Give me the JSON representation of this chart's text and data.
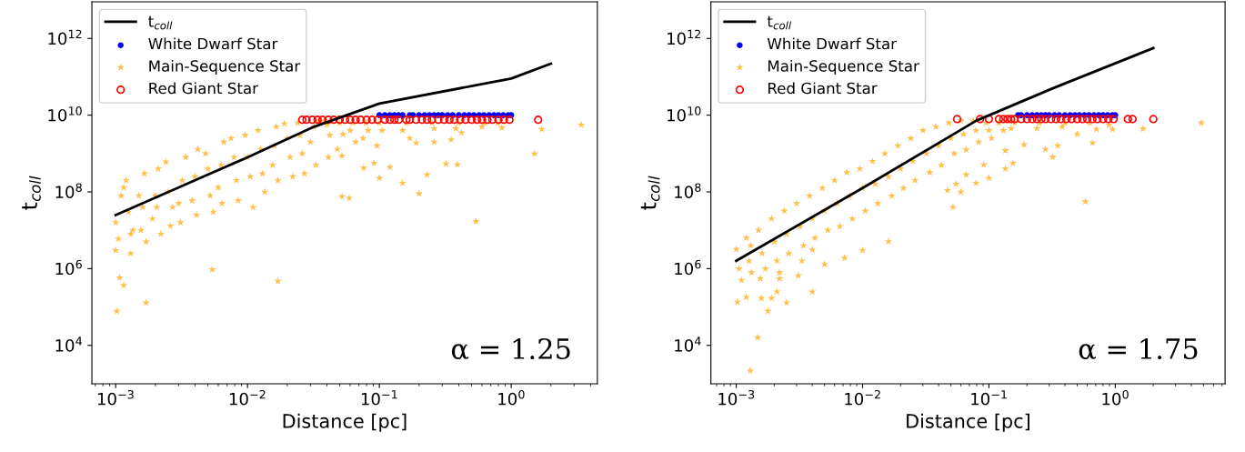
{
  "chart_data": [
    {
      "type": "scatter",
      "xlabel": "Distance [pc]",
      "ylabel": "t$_{coll}$",
      "log": "xy",
      "legend": "top left",
      "annotations": [
        "α = 1.25"
      ],
      "xlim": [
        0.00066,
        4.5
      ],
      "ylim": [
        1000,
        9000000000000.0
      ],
      "xticks": [
        {
          "value": 0.001,
          "label": "10$^{−3}$"
        },
        {
          "value": 0.01,
          "label": "10$^{−2}$"
        },
        {
          "value": 0.1,
          "label": "10$^{−1}$"
        },
        {
          "value": 1,
          "label": "10$^{0}$"
        }
      ],
      "yticks": [
        {
          "value": 10000,
          "label": "10$^{4}$"
        },
        {
          "value": 1000000,
          "label": "10$^{6}$"
        },
        {
          "value": 100000000,
          "label": "10$^{8}$"
        },
        {
          "value": 10000000000,
          "label": "10$^{10}$"
        },
        {
          "value": 1000000000000,
          "label": "10$^{12}$"
        }
      ],
      "series": [
        {
          "name": "t$_{coll}$",
          "type": "line",
          "color": "#000000",
          "marker": "none",
          "line_style": "solid",
          "x": [
            0.001,
            0.01,
            0.032,
            0.1,
            1,
            2
          ],
          "values": [
            25000000.0,
            800000000.0,
            5000000000.0,
            20000000000.0,
            90000000000.0,
            220000000000.0
          ]
        },
        {
          "name": "White Dwarf Star",
          "color": "#0000ff",
          "marker": "circle",
          "x": [
            0.1,
            0.11,
            0.12,
            0.13,
            0.14,
            0.15,
            0.17,
            0.18,
            0.2,
            0.22,
            0.24,
            0.26,
            0.28,
            0.3,
            0.33,
            0.36,
            0.4,
            0.44,
            0.48,
            0.52,
            0.57,
            0.62,
            0.68,
            0.74,
            0.8,
            0.87,
            0.95,
            1.0
          ],
          "values": [
            10000000000.0,
            10000000000.0,
            10000000000.0,
            10000000000.0,
            10000000000.0,
            10000000000.0,
            10000000000.0,
            10000000000.0,
            10000000000.0,
            10000000000.0,
            10000000000.0,
            10000000000.0,
            10000000000.0,
            10000000000.0,
            10000000000.0,
            10000000000.0,
            10000000000.0,
            10000000000.0,
            10000000000.0,
            10000000000.0,
            10000000000.0,
            10000000000.0,
            10000000000.0,
            10000000000.0,
            10000000000.0,
            10000000000.0,
            10000000000.0,
            10000000000.0
          ]
        },
        {
          "name": "Main-Sequence Star",
          "type": "scatter",
          "color": "#ffa500",
          "marker": "star",
          "x": [
            0.001,
            0.00105,
            0.0011,
            0.001,
            0.00115,
            0.00125,
            0.0013,
            0.0012,
            0.00135,
            0.0013,
            0.0016,
            0.00155,
            0.00165,
            0.0015,
            0.0017,
            0.002,
            0.0019,
            0.0021,
            0.00205,
            0.0022,
            0.0025,
            0.0026,
            0.0024,
            0.0027,
            0.0032,
            0.003,
            0.0034,
            0.0031,
            0.004,
            0.0038,
            0.0042,
            0.0041,
            0.005,
            0.0052,
            0.0048,
            0.0055,
            0.0063,
            0.006,
            0.0066,
            0.0064,
            0.0079,
            0.0082,
            0.0075,
            0.0085,
            0.01,
            0.0105,
            0.0096,
            0.011,
            0.0126,
            0.013,
            0.012,
            0.0135,
            0.016,
            0.0155,
            0.0165,
            0.017,
            0.02,
            0.021,
            0.019,
            0.022,
            0.025,
            0.026,
            0.024,
            0.027,
            0.032,
            0.03,
            0.034,
            0.033,
            0.04,
            0.042,
            0.038,
            0.041,
            0.05,
            0.053,
            0.048,
            0.063,
            0.06,
            0.066,
            0.079,
            0.082,
            0.075,
            0.1,
            0.105,
            0.096,
            0.16,
            0.15,
            0.17,
            0.25,
            0.26,
            0.4,
            0.38,
            0.63,
            0.6,
            0.79,
            0.00102,
            0.00107,
            0.00115,
            0.0017,
            0.0054,
            0.017,
            0.54,
            0.052,
            0.059,
            0.2,
            0.15,
            3.4,
            1.5,
            1.7,
            0.1,
            0.12,
            0.076,
            0.23,
            0.32,
            0.39,
            0.091,
            0.85,
            0.19,
            0.26,
            0.35,
            0.052,
            0.42
          ],
          "values": [
            16000000.0,
            6000000.0,
            80000000.0,
            3000000.0,
            130000000.0,
            30000000.0,
            8000000.0,
            200000000.0,
            10000000.0,
            2500000.0,
            40000000.0,
            10000000.0,
            300000000.0,
            80000000.0,
            5000000.0,
            80000000.0,
            20000000.0,
            400000000.0,
            40000000.0,
            8000000.0,
            100000000.0,
            13000000.0,
            600000000.0,
            40000000.0,
            200000000.0,
            50000000.0,
            800000000.0,
            16000000.0,
            250000000.0,
            60000000.0,
            1300000000.0,
            25000000.0,
            400000000.0,
            80000000.0,
            1000000000.0,
            30000000.0,
            500000000.0,
            130000000.0,
            2000000000.0,
            50000000.0,
            800000000.0,
            200000000.0,
            2500000000.0,
            60000000.0,
            800000000.0,
            250000000.0,
            3000000000.0,
            40000000.0,
            1300000000.0,
            300000000.0,
            4000000000.0,
            100000000.0,
            1600000000.0,
            500000000.0,
            5000000000.0,
            200000000.0,
            2500000000.0,
            800000000.0,
            6000000000.0,
            250000000.0,
            3000000000.0,
            1000000000.0,
            6300000000.0,
            300000000.0,
            5000000000.0,
            2000000000.0,
            7000000000.0,
            500000000.0,
            5600000000.0,
            3000000000.0,
            7000000000.0,
            800000000.0,
            6300000000.0,
            3200000000.0,
            1300000000.0,
            6300000000.0,
            4000000000.0,
            2000000000.0,
            6300000000.0,
            4000000000.0,
            2500000000.0,
            6300000000.0,
            4000000000.0,
            1600000000.0,
            6300000000.0,
            4000000000.0,
            2500000000.0,
            6300000000.0,
            4500000000.0,
            6300000000.0,
            4500000000.0,
            6300000000.0,
            5000000000.0,
            6300000000.0,
            78000.0,
            580000.0,
            370000.0,
            130000.0,
            950000.0,
            470000.0,
            17000000.0,
            76000000.0,
            69000000.0,
            90000000.0,
            170000000.0,
            5600000000.0,
            980000000.0,
            4300000000.0,
            230000000.0,
            440000000.0,
            420000000.0,
            280000000.0,
            540000000.0,
            510000000.0,
            560000000.0,
            4700000000.0,
            1900000000.0,
            2000000000.0,
            2300000000.0,
            870000000.0,
            3500000000.0
          ]
        },
        {
          "name": "Red Giant Star",
          "color": "#ff0000",
          "marker": "circle",
          "x": [
            0.026,
            0.028,
            0.031,
            0.034,
            0.037,
            0.041,
            0.045,
            0.05,
            0.055,
            0.06,
            0.066,
            0.072,
            0.08,
            0.088,
            0.097,
            0.11,
            0.12,
            0.13,
            0.14,
            0.16,
            0.17,
            0.19,
            0.21,
            0.23,
            0.25,
            0.28,
            0.31,
            0.34,
            0.37,
            0.41,
            0.45,
            0.5,
            0.55,
            0.6,
            0.66,
            0.72,
            0.8,
            0.88,
            0.97,
            1.6
          ],
          "values": [
            7600000000.0,
            7600000000.0,
            7600000000.0,
            7600000000.0,
            7600000000.0,
            7600000000.0,
            7600000000.0,
            7600000000.0,
            7600000000.0,
            7600000000.0,
            7600000000.0,
            7600000000.0,
            7600000000.0,
            7600000000.0,
            7600000000.0,
            7600000000.0,
            7600000000.0,
            7600000000.0,
            7600000000.0,
            7600000000.0,
            7600000000.0,
            7600000000.0,
            7600000000.0,
            7600000000.0,
            7600000000.0,
            7600000000.0,
            7600000000.0,
            7600000000.0,
            7600000000.0,
            7600000000.0,
            7600000000.0,
            7600000000.0,
            7600000000.0,
            7600000000.0,
            7600000000.0,
            7600000000.0,
            7600000000.0,
            7600000000.0,
            7600000000.0,
            7600000000.0
          ]
        }
      ]
    },
    {
      "type": "scatter",
      "xlabel": "Distance [pc]",
      "ylabel": "t$_{coll}$",
      "log": "xy",
      "legend": "top left",
      "annotations": [
        "α = 1.75"
      ],
      "xlim": [
        0.00063,
        7.4
      ],
      "ylim": [
        1000,
        9000000000000.0
      ],
      "xticks": [
        {
          "value": 0.001,
          "label": "10$^{−3}$"
        },
        {
          "value": 0.01,
          "label": "10$^{−2}$"
        },
        {
          "value": 0.1,
          "label": "10$^{−1}$"
        },
        {
          "value": 1,
          "label": "10$^{0}$"
        }
      ],
      "yticks": [
        {
          "value": 10000,
          "label": "10$^{4}$"
        },
        {
          "value": 1000000,
          "label": "10$^{6}$"
        },
        {
          "value": 100000000,
          "label": "10$^{8}$"
        },
        {
          "value": 10000000000,
          "label": "10$^{10}$"
        },
        {
          "value": 1000000000000,
          "label": "10$^{12}$"
        }
      ],
      "series": [
        {
          "name": "t$_{coll}$",
          "type": "line",
          "color": "#000000",
          "marker": "none",
          "line_style": "solid",
          "x": [
            0.001,
            0.01,
            0.079,
            0.32,
            2
          ],
          "values": [
            1600000.0,
            126000000.0,
            7100000000.0,
            50000000000.0,
            560000000000.0
          ]
        },
        {
          "name": "White Dwarf Star",
          "color": "#0000ff",
          "marker": "circle",
          "x": [
            0.17,
            0.18,
            0.2,
            0.22,
            0.24,
            0.26,
            0.28,
            0.3,
            0.33,
            0.36,
            0.4,
            0.44,
            0.48,
            0.52,
            0.57,
            0.62,
            0.68,
            0.74,
            0.8,
            0.87,
            0.95,
            1.0
          ],
          "values": [
            10000000000.0,
            10000000000.0,
            10000000000.0,
            10000000000.0,
            10000000000.0,
            10000000000.0,
            10000000000.0,
            10000000000.0,
            10000000000.0,
            10000000000.0,
            10000000000.0,
            10000000000.0,
            10000000000.0,
            10000000000.0,
            10000000000.0,
            10000000000.0,
            10000000000.0,
            10000000000.0,
            10000000000.0,
            10000000000.0,
            10000000000.0,
            10000000000.0
          ]
        },
        {
          "name": "Main-Sequence Star",
          "type": "scatter",
          "color": "#ffa500",
          "marker": "star",
          "x": [
            0.001,
            0.00105,
            0.0011,
            0.0012,
            0.00126,
            0.00132,
            0.0013,
            0.0015,
            0.0016,
            0.0017,
            0.0019,
            0.002,
            0.0021,
            0.0022,
            0.0024,
            0.0025,
            0.0026,
            0.003,
            0.0032,
            0.0034,
            0.0033,
            0.0038,
            0.004,
            0.0042,
            0.0048,
            0.005,
            0.0053,
            0.006,
            0.0063,
            0.0066,
            0.0075,
            0.0079,
            0.0083,
            0.0095,
            0.01,
            0.0105,
            0.012,
            0.0126,
            0.0132,
            0.015,
            0.016,
            0.017,
            0.019,
            0.02,
            0.021,
            0.024,
            0.025,
            0.026,
            0.03,
            0.032,
            0.034,
            0.038,
            0.04,
            0.042,
            0.048,
            0.05,
            0.053,
            0.06,
            0.063,
            0.066,
            0.075,
            0.079,
            0.083,
            0.095,
            0.1,
            0.105,
            0.12,
            0.13,
            0.16,
            0.15,
            0.25,
            0.24,
            0.4,
            0.38,
            0.63,
            0.89,
            0.00102,
            0.0012,
            0.00148,
            0.00129,
            0.00178,
            0.00158,
            0.0019,
            0.0025,
            0.004,
            0.0021,
            0.0022,
            0.00155,
            0.0031,
            0.016,
            0.01,
            0.0072,
            0.005,
            0.004,
            0.58,
            0.052,
            0.047,
            0.06,
            0.079,
            0.1,
            0.135,
            0.155,
            0.32,
            0.28,
            0.35,
            0.66,
            4.8,
            1.66,
            0.95,
            0.71,
            0.5,
            0.19,
            0.135,
            0.091,
            0.066,
            0.055
          ],
          "values": [
            3200000.0,
            1000000.0,
            500000.0,
            6300000.0,
            1600000.0,
            790000.0,
            4000000.0,
            10000000.0,
            2500000.0,
            1000000.0,
            20000000.0,
            5000000.0,
            1600000.0,
            790000.0,
            32000000.0,
            7900000.0,
            2500000.0,
            50000000.0,
            12600000.0,
            4000000.0,
            1600000.0,
            79000000.0,
            20000000.0,
            6300000.0,
            126000000.0,
            32000000.0,
            10000000.0,
            200000000.0,
            50000000.0,
            12600000.0,
            320000000.0,
            79000000.0,
            20000000.0,
            400000000.0,
            126000000.0,
            32000000.0,
            630000000.0,
            160000000.0,
            50000000.0,
            1000000000.0,
            250000000.0,
            79000000.0,
            1600000000.0,
            400000000.0,
            126000000.0,
            2500000000.0,
            630000000.0,
            200000000.0,
            4000000000.0,
            1000000000.0,
            320000000.0,
            5000000000.0,
            1600000000.0,
            500000000.0,
            6300000000.0,
            2500000000.0,
            1000000000.0,
            7100000000.0,
            3200000000.0,
            1260000000.0,
            7100000000.0,
            4000000000.0,
            2000000000.0,
            6300000000.0,
            4000000000.0,
            2500000000.0,
            6300000000.0,
            4000000000.0,
            6300000000.0,
            4500000000.0,
            6300000000.0,
            4500000000.0,
            6300000000.0,
            5000000000.0,
            6300000000.0,
            5600000000.0,
            135000.0,
            180000.0,
            16000.0,
            2200.0,
            78000.0,
            170000.0,
            170000.0,
            130000.0,
            250000.0,
            250000.0,
            550000.0,
            550000.0,
            660000.0,
            5100000.0,
            3000000.0,
            1900000.0,
            1300000.0,
            3100000.0,
            56000000.0,
            40000000.0,
            110000000.0,
            100000000.0,
            170000000.0,
            230000000.0,
            400000000.0,
            560000000.0,
            810000000.0,
            1300000000.0,
            1600000000.0,
            1900000000.0,
            6300000000.0,
            4400000000.0,
            4300000000.0,
            4300000000.0,
            3200000000.0,
            1700000000.0,
            1200000000.0,
            510000000.0,
            280000000.0,
            160000000.0
          ]
        },
        {
          "name": "Red Giant Star",
          "color": "#ff0000",
          "marker": "circle",
          "x": [
            0.056,
            0.085,
            0.1,
            0.12,
            0.13,
            0.14,
            0.15,
            0.16,
            0.18,
            0.2,
            0.22,
            0.24,
            0.26,
            0.28,
            0.31,
            0.34,
            0.37,
            0.41,
            0.45,
            0.5,
            0.55,
            0.6,
            0.66,
            0.72,
            0.8,
            0.88,
            0.97,
            1.26,
            1.37,
            2.0
          ],
          "values": [
            7900000000.0,
            7900000000.0,
            7900000000.0,
            7900000000.0,
            7900000000.0,
            7900000000.0,
            7900000000.0,
            7900000000.0,
            7900000000.0,
            7900000000.0,
            7900000000.0,
            7900000000.0,
            7900000000.0,
            7900000000.0,
            7900000000.0,
            7900000000.0,
            7900000000.0,
            7900000000.0,
            7900000000.0,
            7900000000.0,
            7900000000.0,
            7900000000.0,
            7900000000.0,
            7900000000.0,
            7900000000.0,
            7900000000.0,
            7900000000.0,
            7900000000.0,
            7900000000.0,
            7900000000.0
          ]
        }
      ]
    }
  ]
}
